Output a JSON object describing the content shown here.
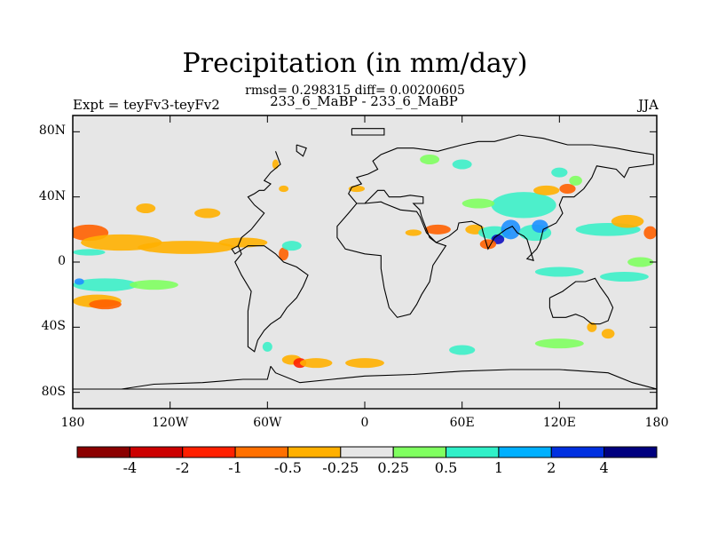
{
  "title": "Precipitation (in mm/day)",
  "stats_text": "rmsd= 0.298315  diff= 0.00200605",
  "subtitle_left": "Expt = teyFv3-teyFv2",
  "subtitle_center": "233_6_MaBP - 233_6_MaBP",
  "subtitle_right": "JJA",
  "map": {
    "lon_range": [
      -180,
      180
    ],
    "lat_range": [
      -90,
      90
    ],
    "background_color": "#e6e6e6",
    "lat_ticks": [
      {
        "value": 80,
        "label": "80N"
      },
      {
        "value": 40,
        "label": "40N"
      },
      {
        "value": 0,
        "label": "0"
      },
      {
        "value": -40,
        "label": "40S"
      },
      {
        "value": -80,
        "label": "80S"
      }
    ],
    "lon_ticks": [
      {
        "value": -180,
        "label": "180"
      },
      {
        "value": -120,
        "label": "120W"
      },
      {
        "value": -60,
        "label": "60W"
      },
      {
        "value": 0,
        "label": "0"
      },
      {
        "value": 60,
        "label": "60E"
      },
      {
        "value": 120,
        "label": "120E"
      },
      {
        "value": 180,
        "label": "180"
      }
    ],
    "field_blobs": [
      {
        "lon": -170,
        "lat": 18,
        "rx": 12,
        "ry": 5,
        "color": "#ff6000"
      },
      {
        "lon": -150,
        "lat": 12,
        "rx": 25,
        "ry": 5,
        "color": "#ffb000"
      },
      {
        "lon": -110,
        "lat": 9,
        "rx": 30,
        "ry": 4,
        "color": "#ffb000"
      },
      {
        "lon": -75,
        "lat": 12,
        "rx": 15,
        "ry": 3,
        "color": "#ffb000"
      },
      {
        "lon": -170,
        "lat": 6,
        "rx": 10,
        "ry": 2,
        "color": "#3cf0c8"
      },
      {
        "lon": -135,
        "lat": 33,
        "rx": 6,
        "ry": 3,
        "color": "#ffb000"
      },
      {
        "lon": -97,
        "lat": 30,
        "rx": 8,
        "ry": 3,
        "color": "#ffb000"
      },
      {
        "lon": -160,
        "lat": -14,
        "rx": 20,
        "ry": 4,
        "color": "#3cf0c8"
      },
      {
        "lon": -130,
        "lat": -14,
        "rx": 15,
        "ry": 3,
        "color": "#80ff60"
      },
      {
        "lon": -165,
        "lat": -24,
        "rx": 15,
        "ry": 4,
        "color": "#ffb000"
      },
      {
        "lon": -160,
        "lat": -26,
        "rx": 10,
        "ry": 3,
        "color": "#ff6000"
      },
      {
        "lon": -176,
        "lat": -12,
        "rx": 3,
        "ry": 2,
        "color": "#1e90ff"
      },
      {
        "lon": 45,
        "lat": 20,
        "rx": 8,
        "ry": 3,
        "color": "#ff6000"
      },
      {
        "lon": 30,
        "lat": 18,
        "rx": 5,
        "ry": 2,
        "color": "#ffb000"
      },
      {
        "lon": 68,
        "lat": 20,
        "rx": 6,
        "ry": 3,
        "color": "#ffb000"
      },
      {
        "lon": 80,
        "lat": 18,
        "rx": 10,
        "ry": 4,
        "color": "#3cf0c8"
      },
      {
        "lon": 82,
        "lat": 14,
        "rx": 4,
        "ry": 3,
        "color": "#1010c0"
      },
      {
        "lon": 76,
        "lat": 11,
        "rx": 5,
        "ry": 3,
        "color": "#ff6000"
      },
      {
        "lon": 90,
        "lat": 20,
        "rx": 6,
        "ry": 6,
        "color": "#1e90ff"
      },
      {
        "lon": 105,
        "lat": 18,
        "rx": 10,
        "ry": 5,
        "color": "#3cf0c8"
      },
      {
        "lon": 108,
        "lat": 22,
        "rx": 5,
        "ry": 4,
        "color": "#1e90ff"
      },
      {
        "lon": 98,
        "lat": 35,
        "rx": 20,
        "ry": 8,
        "color": "#3cf0c8"
      },
      {
        "lon": 70,
        "lat": 36,
        "rx": 10,
        "ry": 3,
        "color": "#80ff60"
      },
      {
        "lon": 112,
        "lat": 44,
        "rx": 8,
        "ry": 3,
        "color": "#ffb000"
      },
      {
        "lon": 125,
        "lat": 45,
        "rx": 5,
        "ry": 3,
        "color": "#ff6000"
      },
      {
        "lon": 150,
        "lat": 20,
        "rx": 20,
        "ry": 4,
        "color": "#3cf0c8"
      },
      {
        "lon": 162,
        "lat": 25,
        "rx": 10,
        "ry": 4,
        "color": "#ffb000"
      },
      {
        "lon": 176,
        "lat": 18,
        "rx": 4,
        "ry": 4,
        "color": "#ff6000"
      },
      {
        "lon": 120,
        "lat": -6,
        "rx": 15,
        "ry": 3,
        "color": "#3cf0c8"
      },
      {
        "lon": 160,
        "lat": -9,
        "rx": 15,
        "ry": 3,
        "color": "#3cf0c8"
      },
      {
        "lon": 170,
        "lat": 0,
        "rx": 8,
        "ry": 3,
        "color": "#80ff60"
      },
      {
        "lon": 140,
        "lat": -40,
        "rx": 3,
        "ry": 3,
        "color": "#ffb000"
      },
      {
        "lon": 150,
        "lat": -44,
        "rx": 4,
        "ry": 3,
        "color": "#ffb000"
      },
      {
        "lon": 120,
        "lat": -50,
        "rx": 15,
        "ry": 3,
        "color": "#80ff60"
      },
      {
        "lon": 60,
        "lat": -54,
        "rx": 8,
        "ry": 3,
        "color": "#3cf0c8"
      },
      {
        "lon": -45,
        "lat": -60,
        "rx": 6,
        "ry": 3,
        "color": "#ffb000"
      },
      {
        "lon": -40,
        "lat": -62,
        "rx": 4,
        "ry": 3,
        "color": "#ff2000"
      },
      {
        "lon": -30,
        "lat": -62,
        "rx": 10,
        "ry": 3,
        "color": "#ffb000"
      },
      {
        "lon": 0,
        "lat": -62,
        "rx": 12,
        "ry": 3,
        "color": "#ffb000"
      },
      {
        "lon": -60,
        "lat": -52,
        "rx": 3,
        "ry": 3,
        "color": "#3cf0c8"
      },
      {
        "lon": -50,
        "lat": 5,
        "rx": 3,
        "ry": 4,
        "color": "#ff6000"
      },
      {
        "lon": -45,
        "lat": 10,
        "rx": 6,
        "ry": 3,
        "color": "#3cf0c8"
      },
      {
        "lon": -55,
        "lat": 60,
        "rx": 2,
        "ry": 3,
        "color": "#ffb000"
      },
      {
        "lon": -50,
        "lat": 45,
        "rx": 3,
        "ry": 2,
        "color": "#ffb000"
      },
      {
        "lon": -5,
        "lat": 45,
        "rx": 5,
        "ry": 2,
        "color": "#ffb000"
      },
      {
        "lon": 60,
        "lat": 60,
        "rx": 6,
        "ry": 3,
        "color": "#3cf0c8"
      },
      {
        "lon": 40,
        "lat": 63,
        "rx": 6,
        "ry": 3,
        "color": "#80ff60"
      },
      {
        "lon": 120,
        "lat": 55,
        "rx": 5,
        "ry": 3,
        "color": "#3cf0c8"
      },
      {
        "lon": 130,
        "lat": 50,
        "rx": 4,
        "ry": 3,
        "color": "#80ff60"
      }
    ],
    "coastlines": [
      [
        [
          -42,
          72
        ],
        [
          -42,
          68
        ],
        [
          -38,
          65
        ],
        [
          -36,
          70
        ],
        [
          -42,
          72
        ]
      ],
      [
        [
          -55,
          68
        ],
        [
          -52,
          60
        ],
        [
          -58,
          55
        ],
        [
          -62,
          50
        ],
        [
          -58,
          48
        ],
        [
          -62,
          44
        ],
        [
          -65,
          44
        ],
        [
          -68,
          42
        ],
        [
          -72,
          40
        ],
        [
          -68,
          35
        ],
        [
          -62,
          30
        ],
        [
          -66,
          25
        ],
        [
          -70,
          20
        ],
        [
          -76,
          15
        ],
        [
          -78,
          10
        ],
        [
          -82,
          8
        ],
        [
          -80,
          5
        ],
        [
          -72,
          10
        ],
        [
          -62,
          10
        ],
        [
          -55,
          5
        ],
        [
          -50,
          0
        ],
        [
          -42,
          -3
        ],
        [
          -35,
          -8
        ],
        [
          -38,
          -15
        ],
        [
          -42,
          -22
        ],
        [
          -48,
          -28
        ],
        [
          -52,
          -34
        ],
        [
          -58,
          -38
        ],
        [
          -62,
          -42
        ],
        [
          -66,
          -48
        ],
        [
          -68,
          -55
        ],
        [
          -72,
          -52
        ],
        [
          -72,
          -42
        ],
        [
          -72,
          -30
        ],
        [
          -70,
          -18
        ],
        [
          -76,
          -8
        ],
        [
          -80,
          0
        ],
        [
          -76,
          5
        ],
        [
          -78,
          10
        ]
      ],
      [
        [
          -8,
          82
        ],
        [
          12,
          82
        ],
        [
          12,
          78
        ],
        [
          -8,
          78
        ],
        [
          -8,
          82
        ]
      ],
      [
        [
          0,
          36
        ],
        [
          -5,
          36
        ],
        [
          -10,
          30
        ],
        [
          -17,
          22
        ],
        [
          -17,
          15
        ],
        [
          -12,
          8
        ],
        [
          0,
          5
        ],
        [
          10,
          4
        ],
        [
          10,
          -4
        ],
        [
          12,
          -16
        ],
        [
          15,
          -28
        ],
        [
          20,
          -34
        ],
        [
          28,
          -32
        ],
        [
          32,
          -26
        ],
        [
          35,
          -20
        ],
        [
          40,
          -12
        ],
        [
          42,
          -2
        ],
        [
          50,
          10
        ],
        [
          44,
          12
        ],
        [
          38,
          18
        ],
        [
          34,
          28
        ],
        [
          32,
          31
        ],
        [
          22,
          32
        ],
        [
          12,
          36
        ],
        [
          10,
          37
        ],
        [
          0,
          36
        ]
      ],
      [
        [
          0,
          36
        ],
        [
          -5,
          36
        ],
        [
          -10,
          42
        ],
        [
          -8,
          46
        ],
        [
          -2,
          48
        ],
        [
          -5,
          52
        ],
        [
          2,
          54
        ],
        [
          8,
          57
        ],
        [
          5,
          62
        ],
        [
          10,
          66
        ],
        [
          20,
          70
        ],
        [
          30,
          70
        ],
        [
          45,
          68
        ],
        [
          60,
          72
        ],
        [
          70,
          74
        ],
        [
          80,
          74
        ],
        [
          95,
          78
        ],
        [
          110,
          76
        ],
        [
          125,
          72
        ],
        [
          140,
          72
        ],
        [
          155,
          70
        ],
        [
          165,
          68
        ],
        [
          178,
          66
        ],
        [
          178,
          60
        ],
        [
          163,
          58
        ],
        [
          160,
          52
        ],
        [
          155,
          57
        ],
        [
          143,
          59
        ],
        [
          140,
          52
        ],
        [
          135,
          45
        ],
        [
          129,
          40
        ],
        [
          122,
          40
        ],
        [
          120,
          35
        ],
        [
          122,
          30
        ],
        [
          118,
          24
        ],
        [
          110,
          20
        ],
        [
          108,
          12
        ],
        [
          106,
          8
        ],
        [
          100,
          2
        ],
        [
          104,
          1
        ],
        [
          100,
          14
        ],
        [
          98,
          16
        ],
        [
          94,
          18
        ],
        [
          91,
          22
        ],
        [
          87,
          20
        ],
        [
          80,
          15
        ],
        [
          76,
          8
        ],
        [
          73,
          18
        ],
        [
          72,
          22
        ],
        [
          66,
          25
        ],
        [
          58,
          24
        ],
        [
          57,
          20
        ],
        [
          52,
          16
        ],
        [
          44,
          12
        ],
        [
          40,
          15
        ],
        [
          35,
          28
        ],
        [
          34,
          32
        ],
        [
          30,
          36
        ],
        [
          36,
          36
        ],
        [
          36,
          40
        ],
        [
          28,
          41
        ],
        [
          22,
          40
        ],
        [
          15,
          40
        ],
        [
          12,
          44
        ],
        [
          8,
          44
        ],
        [
          0,
          36
        ]
      ],
      [
        [
          114,
          -22
        ],
        [
          122,
          -18
        ],
        [
          130,
          -12
        ],
        [
          136,
          -12
        ],
        [
          142,
          -10
        ],
        [
          145,
          -15
        ],
        [
          150,
          -22
        ],
        [
          153,
          -28
        ],
        [
          150,
          -36
        ],
        [
          145,
          -38
        ],
        [
          140,
          -38
        ],
        [
          135,
          -34
        ],
        [
          130,
          -32
        ],
        [
          124,
          -34
        ],
        [
          116,
          -34
        ],
        [
          114,
          -28
        ],
        [
          114,
          -22
        ]
      ],
      [
        [
          -58,
          -64
        ],
        [
          -60,
          -72
        ],
        [
          -75,
          -72
        ],
        [
          -100,
          -74
        ],
        [
          -130,
          -75
        ],
        [
          -150,
          -78
        ],
        [
          -165,
          -78
        ],
        [
          -180,
          -78
        ],
        [
          180,
          -78
        ],
        [
          165,
          -74
        ],
        [
          150,
          -68
        ],
        [
          120,
          -66
        ],
        [
          90,
          -66
        ],
        [
          60,
          -67
        ],
        [
          30,
          -69
        ],
        [
          0,
          -70
        ],
        [
          -20,
          -72
        ],
        [
          -40,
          -74
        ],
        [
          -55,
          -68
        ],
        [
          -58,
          -64
        ]
      ]
    ]
  },
  "colorbar": {
    "colors": [
      "#8b0000",
      "#cc0000",
      "#ff2000",
      "#ff7000",
      "#ffb000",
      "#e6e6e6",
      "#80ff60",
      "#30f0c8",
      "#00b0ff",
      "#0030e0",
      "#00007f"
    ],
    "labels": [
      "-4",
      "-2",
      "-1",
      "-0.5",
      "-0.25",
      "0.25",
      "0.5",
      "1",
      "2",
      "4"
    ]
  }
}
